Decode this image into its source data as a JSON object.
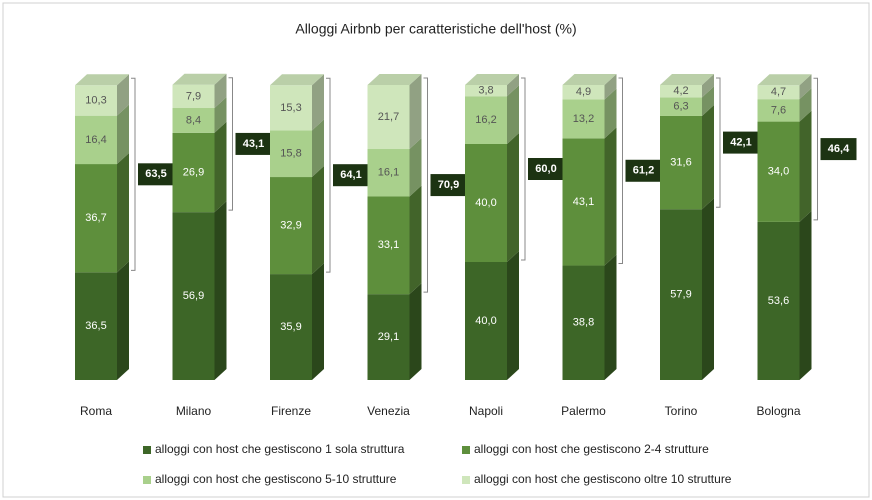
{
  "chart_data": {
    "type": "bar3d_stacked",
    "title": "Alloggi Airbnb per caratteristiche dell'host (%)",
    "categories": [
      "Roma",
      "Milano",
      "Firenze",
      "Venezia",
      "Napoli",
      "Palermo",
      "Torino",
      "Bologna"
    ],
    "series": [
      {
        "name": "alloggi con host che gestiscono 1 sola struttura",
        "color": "#3d6627",
        "values": [
          36.5,
          56.9,
          35.9,
          29.1,
          40.0,
          38.8,
          57.9,
          53.6
        ],
        "value_labels": [
          "36,5",
          "56,9",
          "35,9",
          "29,1",
          "40,0",
          "38,8",
          "57,9",
          "53,6"
        ]
      },
      {
        "name": "alloggi con host che gestiscono 2-4  strutture",
        "color": "#5e8f3c",
        "values": [
          36.7,
          26.9,
          32.9,
          33.1,
          40.0,
          43.1,
          31.6,
          34.0
        ],
        "value_labels": [
          "36,7",
          "26,9",
          "32,9",
          "33,1",
          "40,0",
          "43,1",
          "31,6",
          "34,0"
        ]
      },
      {
        "name": "alloggi con host che gestiscono 5-10 strutture",
        "color": "#a9d08c",
        "values": [
          16.4,
          8.4,
          15.8,
          16.1,
          16.2,
          13.2,
          6.3,
          7.6
        ],
        "value_labels": [
          "16,4",
          "8,4",
          "15,8",
          "16,1",
          "16,2",
          "13,2",
          "6,3",
          "7,6"
        ]
      },
      {
        "name": "alloggi con host che gestiscono oltre 10 strutture",
        "color": "#cfe6bb",
        "values": [
          10.3,
          7.9,
          15.3,
          21.7,
          3.8,
          4.9,
          4.2,
          4.7
        ],
        "value_labels": [
          "10,3",
          "7,9",
          "15,3",
          "21,7",
          "3,8",
          "4,9",
          "4,2",
          "4,7"
        ]
      }
    ],
    "totals": {
      "values": [
        63.5,
        43.1,
        64.1,
        70.9,
        60.0,
        61.2,
        42.1,
        46.4
      ],
      "value_labels": [
        "63,5",
        "43,1",
        "64,1",
        "70,9",
        "60,0",
        "61,2",
        "42,1",
        "46,4"
      ]
    }
  }
}
